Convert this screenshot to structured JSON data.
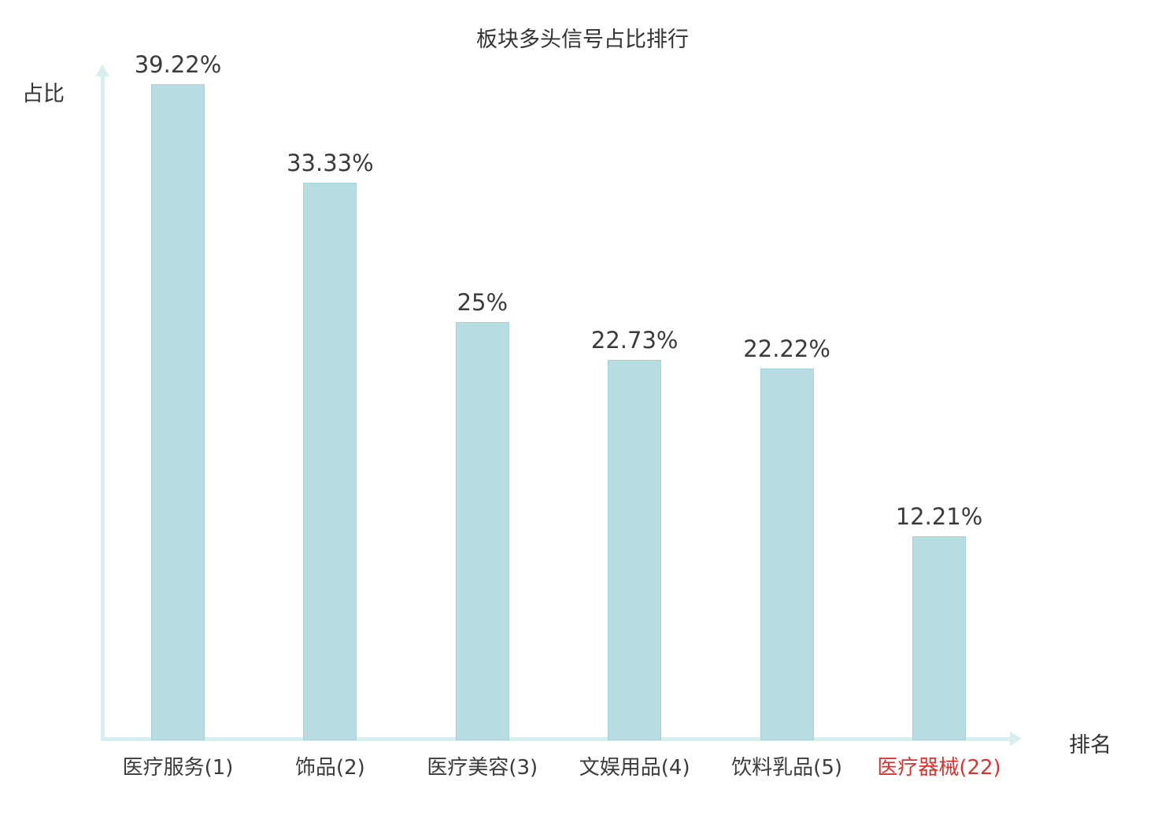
{
  "title": "板块多头信号占比排行",
  "axis": {
    "y_label": "占比",
    "x_label": "排名"
  },
  "colors": {
    "bar_fill": "#b7dde2",
    "bar_edge": "#a3d2d8",
    "axis_line": "#d8eff0",
    "text": "#3b3b3b",
    "highlight_text": "#e03131"
  },
  "chart_data": {
    "type": "bar",
    "title": "板块多头信号占比排行",
    "xlabel": "排名",
    "ylabel": "占比",
    "categories": [
      "医疗服务(1)",
      "饰品(2)",
      "医疗美容(3)",
      "文娱用品(4)",
      "饮料乳品(5)",
      "医疗器械(22)"
    ],
    "values": [
      39.22,
      33.33,
      25,
      22.73,
      22.22,
      12.21
    ],
    "value_labels": [
      "39.22%",
      "33.33%",
      "25%",
      "22.73%",
      "22.22%",
      "12.21%"
    ],
    "ylim": [
      0,
      40
    ],
    "grid": false,
    "legend": "none",
    "highlight_index": 5,
    "highlight_category": "医疗器械(22)"
  }
}
